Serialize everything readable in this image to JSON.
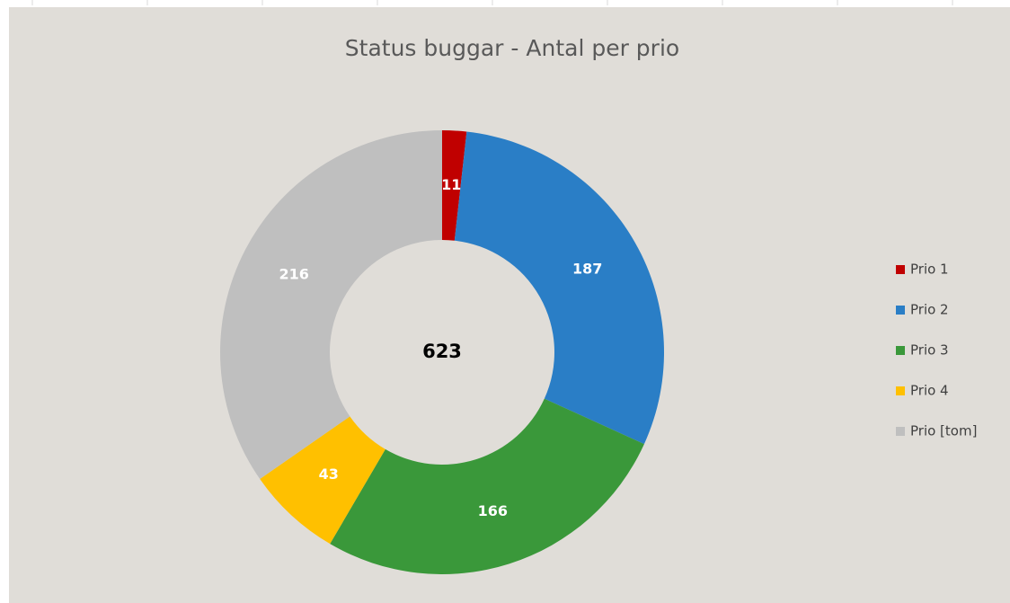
{
  "chart_data": {
    "type": "donut",
    "title": "Status buggar - Antal per prio",
    "categories": [
      "Prio 1",
      "Prio 2",
      "Prio 3",
      "Prio 4",
      "Prio [tom]"
    ],
    "values": [
      11,
      187,
      166,
      43,
      216
    ],
    "colors": [
      "#c00000",
      "#2a7ec6",
      "#3a983a",
      "#ffc000",
      "#bfbfbf"
    ],
    "center_label": 623,
    "legend": "right"
  }
}
